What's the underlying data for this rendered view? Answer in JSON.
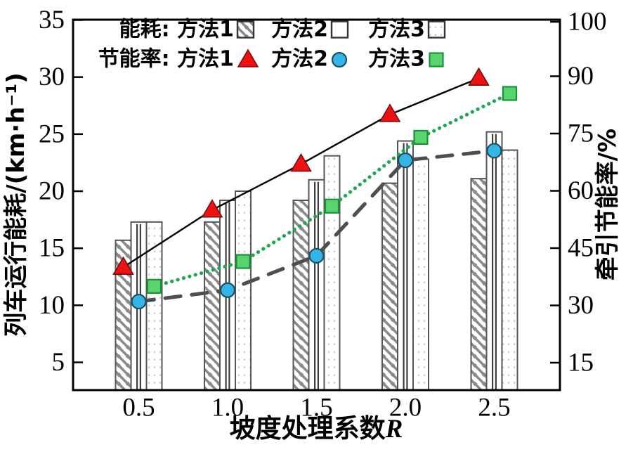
{
  "chart_data": {
    "type": "bar+line",
    "title": "",
    "xlabel_cjk": "坡度处理系数",
    "xlabel_var": "R",
    "ylabel_left": "列车运行能耗/(km·h⁻¹)",
    "ylabel_right": "牵引节能率/%",
    "x_categories": [
      "0.5",
      "1.0",
      "1.5",
      "2.0",
      "2.5"
    ],
    "left_axis": {
      "ticks": [
        5,
        10,
        15,
        20,
        25,
        30,
        35
      ],
      "range_bottom": 2.6,
      "range_top": 35.1
    },
    "right_axis": {
      "ticks": [
        15,
        30,
        45,
        60,
        75,
        90,
        100
      ]
    },
    "bar_series": [
      {
        "name": "方法1",
        "pattern": "diagonal-hatch",
        "values": [
          15.7,
          17.3,
          19.2,
          20.7,
          21.1
        ]
      },
      {
        "name": "方法2",
        "pattern": "vertical-lines",
        "values": [
          17.3,
          19.2,
          21.0,
          24.4,
          25.2
        ]
      },
      {
        "name": "方法3",
        "pattern": "light-dots",
        "values": [
          17.3,
          20.0,
          23.1,
          22.8,
          23.6
        ]
      }
    ],
    "line_series": [
      {
        "name": "方法1",
        "marker": "triangle",
        "marker_fill": "#ee1111",
        "marker_edge": "#7a0d0d",
        "line_color": "#000000",
        "line_style": "solid",
        "values": [
          40,
          55,
          67,
          80,
          89.5
        ]
      },
      {
        "name": "方法2",
        "marker": "circle",
        "marker_fill": "#35b5e5",
        "marker_edge": "#1e4f63",
        "line_color": "#4f4f4f",
        "line_style": "dashed",
        "values": [
          31,
          34,
          43,
          68,
          70.5
        ]
      },
      {
        "name": "方法3",
        "marker": "square",
        "marker_fill": "#5ad46e",
        "marker_edge": "#18933b",
        "line_color": "#1fa750",
        "line_style": "dotted",
        "values": [
          35,
          41.5,
          56,
          74,
          85.5
        ]
      }
    ],
    "legend": {
      "row1_prefix": "能耗:",
      "row2_prefix": "节能率:",
      "entries": [
        "方法1",
        "方法2",
        "方法3"
      ]
    },
    "colors": {
      "bar_edge": "#555555",
      "hatch": "#8a8a8a",
      "vline": "#3f3f3f",
      "dot": "#cccccc",
      "frame": "#000000"
    }
  }
}
